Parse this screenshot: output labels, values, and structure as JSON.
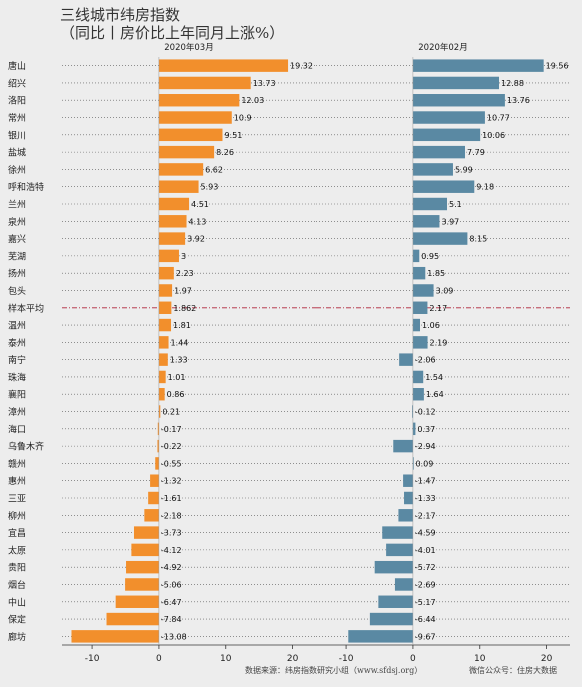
{
  "header": {
    "title_line1": "三线城市纬房指数",
    "title_line2": "（同比丨房价比上年同月上涨%）"
  },
  "footer": {
    "source": "数据来源：纬房指数研究小组（www.sfdsj.org）",
    "wechat": "微信公众号：住房大数据"
  },
  "colors": {
    "panel_left": "#f28f2c",
    "panel_right": "#5a89a3",
    "reference_line": "#b0223a"
  },
  "chart_data": {
    "type": "bar",
    "orientation": "horizontal",
    "categories": [
      "唐山",
      "绍兴",
      "洛阳",
      "常州",
      "银川",
      "盐城",
      "徐州",
      "呼和浩特",
      "兰州",
      "泉州",
      "嘉兴",
      "芜湖",
      "扬州",
      "包头",
      "样本平均",
      "温州",
      "泰州",
      "南宁",
      "珠海",
      "襄阳",
      "漳州",
      "海口",
      "乌鲁木齐",
      "赣州",
      "惠州",
      "三亚",
      "柳州",
      "宜昌",
      "太原",
      "贵阳",
      "烟台",
      "中山",
      "保定",
      "廊坊"
    ],
    "reference_category": "样本平均",
    "series": [
      {
        "name": "2020年03月",
        "values": [
          19.32,
          13.73,
          12.03,
          10.9,
          9.51,
          8.26,
          6.62,
          5.93,
          4.51,
          4.13,
          3.92,
          3,
          2.23,
          1.97,
          1.862,
          1.81,
          1.44,
          1.33,
          1.01,
          0.86,
          0.21,
          -0.17,
          -0.22,
          -0.55,
          -1.32,
          -1.61,
          -2.18,
          -3.73,
          -4.12,
          -4.92,
          -5.06,
          -6.47,
          -7.84,
          -13.08
        ],
        "labels": [
          "19.32",
          "13.73",
          "12.03",
          "10.9",
          "9.51",
          "8.26",
          "6.62",
          "5.93",
          "4.51",
          "4.13",
          "3.92",
          "3",
          "2.23",
          "1.97",
          "1.862",
          "1.81",
          "1.44",
          "1.33",
          "1.01",
          "0.86",
          "0.21",
          "-0.17",
          "-0.22",
          "-0.55",
          "-1.32",
          "-1.61",
          "-2.18",
          "-3.73",
          "-4.12",
          "-4.92",
          "-5.06",
          "-6.47",
          "-7.84",
          "-13.08"
        ]
      },
      {
        "name": "2020年02月",
        "values": [
          19.56,
          12.88,
          13.76,
          10.77,
          10.06,
          7.79,
          5.99,
          9.18,
          5.1,
          3.97,
          8.15,
          0.95,
          1.85,
          3.09,
          2.17,
          1.06,
          2.19,
          -2.06,
          1.54,
          1.64,
          -0.12,
          0.37,
          -2.94,
          0.09,
          -1.47,
          -1.33,
          -2.17,
          -4.59,
          -4.01,
          -5.72,
          -2.69,
          -5.17,
          -6.44,
          -9.67
        ],
        "labels": [
          "19.56",
          "12.88",
          "13.76",
          "10.77",
          "10.06",
          "7.79",
          "5.99",
          "9.18",
          "5.1",
          "3.97",
          "8.15",
          "0.95",
          "1.85",
          "3.09",
          "2.17",
          "1.06",
          "2.19",
          "-2.06",
          "1.54",
          "1.64",
          "-0.12",
          "0.37",
          "-2.94",
          "0.09",
          "-1.47",
          "-1.33",
          "-2.17",
          "-4.59",
          "-4.01",
          "-5.72",
          "-2.69",
          "-5.17",
          "-6.44",
          "-9.67"
        ]
      }
    ],
    "xlim": [
      -14.5,
      23.5
    ],
    "xticks": [
      -10,
      0,
      10,
      20
    ],
    "xtick_labels": [
      "-10",
      "0",
      "10",
      "20"
    ],
    "grid": "dotted horizontal"
  }
}
